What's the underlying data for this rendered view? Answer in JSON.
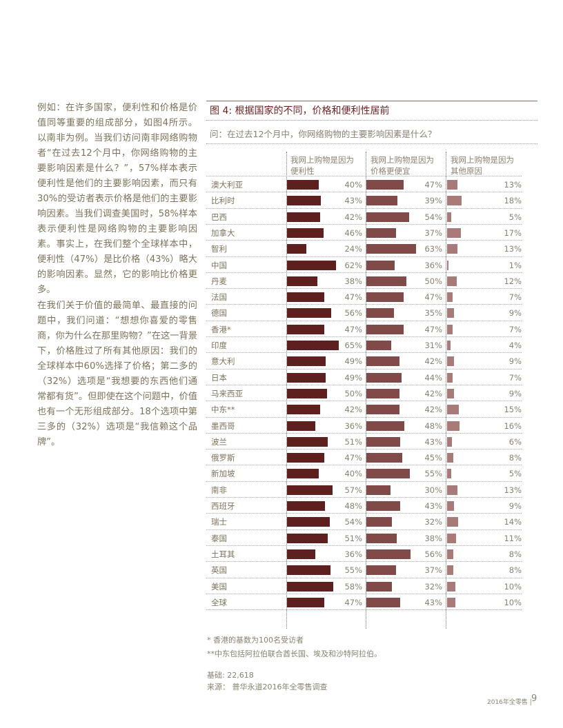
{
  "body": {
    "p1": "例如：在许多国家，便利性和价格是价值同等重要的组成部分，如图4所示。以南非为例。当我们访问南非网络购物者“在过去12个月中，你网络购物的主要影响因素是什么？”，57%样本表示便利性是他们的主要影响因素，而只有30%的受访者表示价格是他们的主要影响因素。当我们调查美国时，58%样本表示便利性是网络购物的主要影响因素。事实上，在我们整个全球样本中，便利性（47%）是比价格（43%）略大的影响因素。显然，它的影响比价格更多。",
    "p2": "在我们关于价值的最简单、最直接的问题中，我们问道：“想想你喜爱的零售商，你为什么在那里购物？”在这一背景下，价格胜过了所有其他原因：我们的全球样本中60%选择了价格；第二多的（32%）选项是“我想要的东西他们通常都有货”。但即使在这个问题中，价值也有一个无形组成部分。18个选项中第三多的（32%）选项是“我信赖这个品牌”。"
  },
  "chart_data": {
    "type": "bar",
    "title": "图 4: 根据国家的不同，价格和便利性居前",
    "question": "问：在过去12个月中，你网络购物的主要影响因素是什么？",
    "series": [
      {
        "name": "我网上购物是因为便利性",
        "line1": "我网上购物是因为",
        "line2": "便利性",
        "color": "#5e1f1f",
        "values": [
          40,
          43,
          42,
          46,
          24,
          62,
          38,
          47,
          56,
          47,
          65,
          49,
          49,
          50,
          42,
          36,
          51,
          47,
          40,
          57,
          48,
          54,
          51,
          36,
          55,
          58,
          47
        ]
      },
      {
        "name": "我网上购物是因为价格更便宜",
        "line1": "我网上购物是因为",
        "line2": "价格更便宜",
        "color": "#7f4a48",
        "values": [
          47,
          39,
          54,
          37,
          63,
          36,
          50,
          47,
          35,
          47,
          31,
          42,
          44,
          42,
          42,
          48,
          43,
          45,
          55,
          30,
          43,
          32,
          38,
          56,
          37,
          32,
          43
        ]
      },
      {
        "name": "我网上购物是因为其他原因",
        "line1": "我网上购物是因为",
        "line2": "其他原因",
        "color": "#a87a78",
        "values": [
          13,
          18,
          5,
          17,
          13,
          1,
          12,
          7,
          9,
          7,
          4,
          9,
          7,
          9,
          15,
          16,
          6,
          8,
          5,
          13,
          9,
          14,
          11,
          8,
          8,
          10,
          10
        ]
      }
    ],
    "categories": [
      "澳大利亚",
      "比利时",
      "巴西",
      "加拿大",
      "智利",
      "中国",
      "丹麦",
      "法国",
      "德国",
      "香港*",
      "印度",
      "意大利",
      "日本",
      "马来西亚",
      "中东**",
      "墨西哥",
      "波兰",
      "俄罗斯",
      "新加坡",
      "南非",
      "西班牙",
      "瑞士",
      "泰国",
      "土耳其",
      "英国",
      "美国",
      "全球"
    ],
    "unit": "%"
  },
  "notes": {
    "n1": "* 香港的基数为100名受访者",
    "n2": "**中东包括阿拉伯联合酋长国、埃及和沙特阿拉伯。",
    "base": "基础: 22,618",
    "source": "来源： 普华永道2016年全零售调查"
  },
  "footer": {
    "label": "2016年全零售  |",
    "page": "9"
  }
}
